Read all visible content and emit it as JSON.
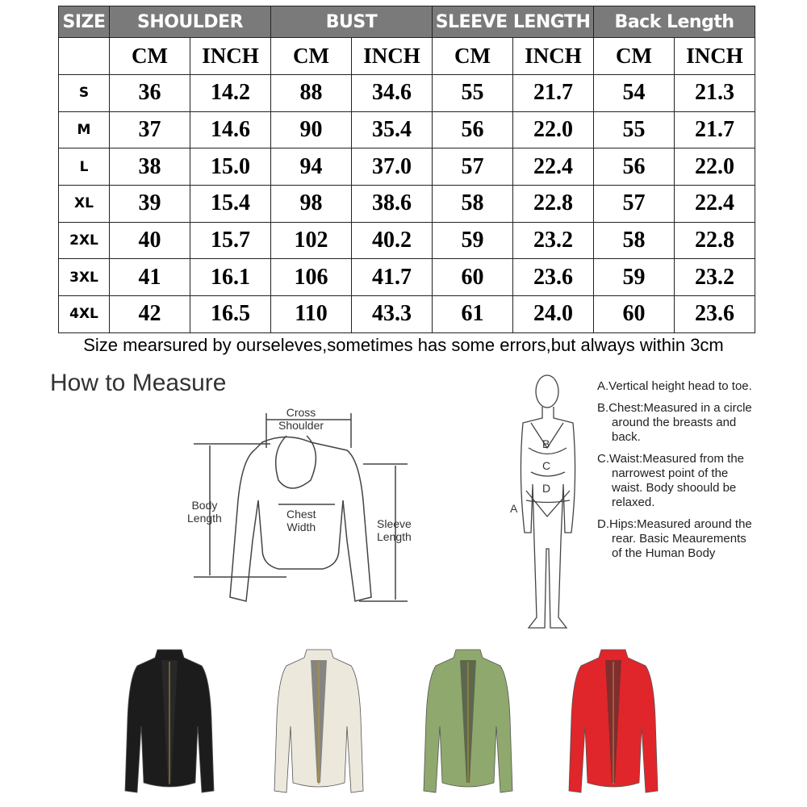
{
  "table": {
    "groups": [
      "SIZE",
      "SHOULDER",
      "BUST",
      "SLEEVE LENGTH",
      "Back Length"
    ],
    "units": [
      "CM",
      "INCH",
      "CM",
      "INCH",
      "CM",
      "INCH",
      "CM",
      "INCH"
    ],
    "rows": [
      [
        "S",
        "36",
        "14.2",
        "88",
        "34.6",
        "55",
        "21.7",
        "54",
        "21.3"
      ],
      [
        "M",
        "37",
        "14.6",
        "90",
        "35.4",
        "56",
        "22.0",
        "55",
        "21.7"
      ],
      [
        "L",
        "38",
        "15.0",
        "94",
        "37.0",
        "57",
        "22.4",
        "56",
        "22.0"
      ],
      [
        "XL",
        "39",
        "15.4",
        "98",
        "38.6",
        "58",
        "22.8",
        "57",
        "22.4"
      ],
      [
        "2XL",
        "40",
        "15.7",
        "102",
        "40.2",
        "59",
        "23.2",
        "58",
        "22.8"
      ],
      [
        "3XL",
        "41",
        "16.1",
        "106",
        "41.7",
        "60",
        "23.6",
        "59",
        "23.2"
      ],
      [
        "4XL",
        "42",
        "16.5",
        "110",
        "43.3",
        "61",
        "24.0",
        "60",
        "23.6"
      ]
    ]
  },
  "note": "Size mearsured by ourseleves,sometimes has some errors,but always within 3cm",
  "how_to": {
    "title": "How to Measure",
    "cross_shoulder": "Cross\nShoulder",
    "body_length": "Body\nLength",
    "chest_width": "Chest\nWidth",
    "sleeve_length": "Sleeve\nLength",
    "body_labels": [
      "A",
      "B",
      "C",
      "D"
    ],
    "legend": [
      "A.Vertical height head to toe.",
      "B.Chest:Measured in a circle around the breasts and back.",
      "C.Waist:Measured from the narrowest point of the waist. Body shoould be relaxed.",
      "D.Hips:Measured around the rear. Basic Meaurements of the Human Body"
    ]
  },
  "jackets": [
    {
      "color_name": "black",
      "color": "#1c1c1c"
    },
    {
      "color_name": "white",
      "color": "#ece8dc"
    },
    {
      "color_name": "green",
      "color": "#8fa86e"
    },
    {
      "color_name": "red",
      "color": "#e0262a"
    }
  ]
}
